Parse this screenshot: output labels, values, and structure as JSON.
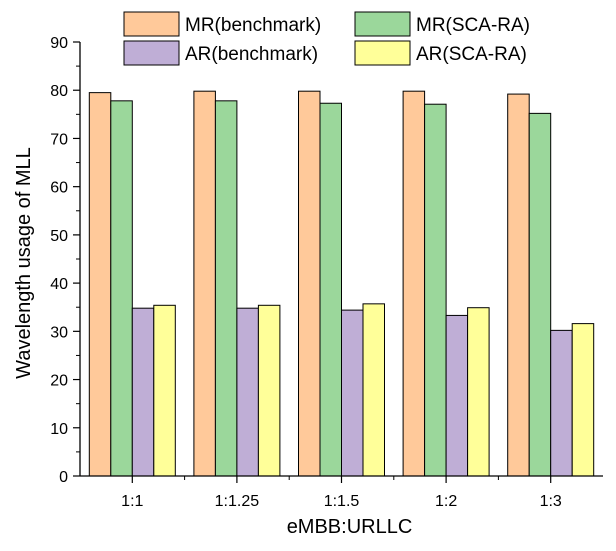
{
  "chart_data": {
    "type": "bar",
    "title": "",
    "xlabel": "eMBB:URLLC",
    "ylabel": "Wavelength usage of MLL",
    "categories": [
      "1:1",
      "1:1.25",
      "1:1.5",
      "1:2",
      "1:3"
    ],
    "ylim": [
      0,
      90
    ],
    "yticks": [
      0,
      10,
      20,
      30,
      40,
      50,
      60,
      70,
      80,
      90
    ],
    "grid": false,
    "legend_position": "top",
    "series": [
      {
        "name": "MR(benchmark)",
        "color": "#FFC99A",
        "values": [
          79.5,
          79.8,
          79.8,
          79.8,
          79.2
        ]
      },
      {
        "name": "MR(SCA-RA)",
        "color": "#9BD79B",
        "values": [
          77.8,
          77.8,
          77.3,
          77.1,
          75.2
        ]
      },
      {
        "name": "AR(benchmark)",
        "color": "#BFAED6",
        "values": [
          34.8,
          34.8,
          34.4,
          33.3,
          30.2
        ]
      },
      {
        "name": "AR(SCA-RA)",
        "color": "#FFFF99",
        "values": [
          35.4,
          35.4,
          35.7,
          34.9,
          31.6
        ]
      }
    ]
  }
}
